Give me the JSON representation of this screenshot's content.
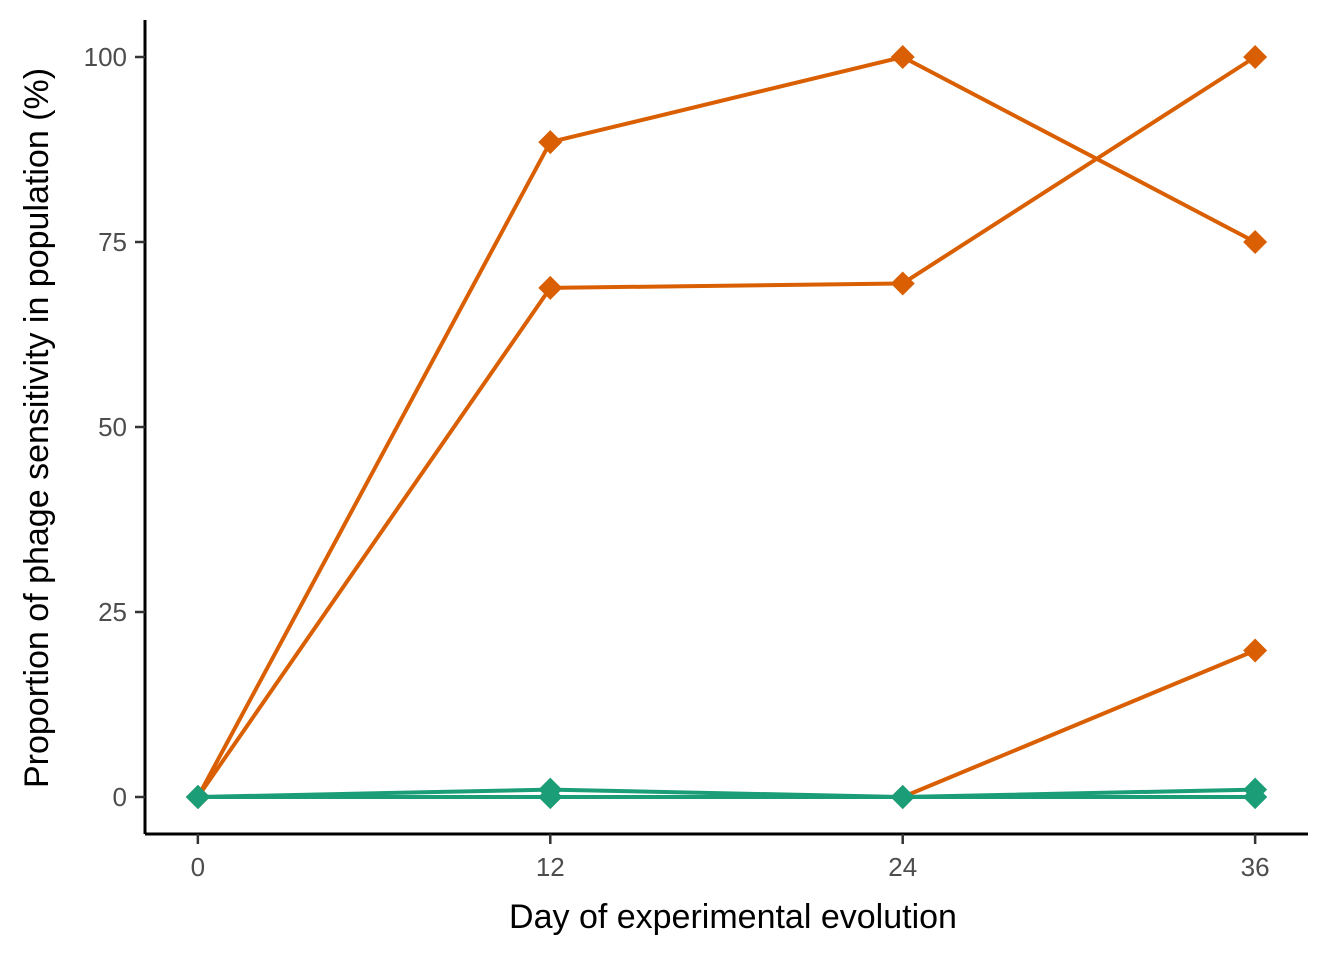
{
  "chart_data": {
    "type": "line",
    "title": "",
    "xlabel": "Day of experimental evolution",
    "ylabel": "Proportion of phage sensitivity in population (%)",
    "x_ticks": [
      "0",
      "12",
      "24",
      "36"
    ],
    "y_ticks": [
      "0",
      "25",
      "50",
      "75",
      "100"
    ],
    "xlim": [
      -1.8,
      37.8
    ],
    "ylim": [
      -5,
      105
    ],
    "grid": false,
    "legend": "none",
    "marker": "diamond",
    "series": [
      {
        "group": "orange",
        "color": "#d95f02",
        "x": [
          0,
          12,
          24,
          36
        ],
        "y": [
          0,
          88.5,
          100,
          75
        ]
      },
      {
        "group": "orange",
        "color": "#d95f02",
        "x": [
          0,
          12,
          24,
          36
        ],
        "y": [
          0,
          68.8,
          69.4,
          100
        ]
      },
      {
        "group": "orange",
        "color": "#d95f02",
        "x": [
          0,
          12,
          24,
          36
        ],
        "y": [
          0,
          0,
          0,
          19.8
        ]
      },
      {
        "group": "green",
        "color": "#1b9e77",
        "x": [
          0,
          12,
          24,
          36
        ],
        "y": [
          0,
          1,
          0,
          1
        ]
      },
      {
        "group": "green",
        "color": "#1b9e77",
        "x": [
          0,
          12,
          24,
          36
        ],
        "y": [
          0,
          0,
          0,
          0
        ]
      },
      {
        "group": "green",
        "color": "#1b9e77",
        "x": [
          0,
          12,
          24,
          36
        ],
        "y": [
          0,
          0,
          0,
          0
        ]
      }
    ]
  }
}
